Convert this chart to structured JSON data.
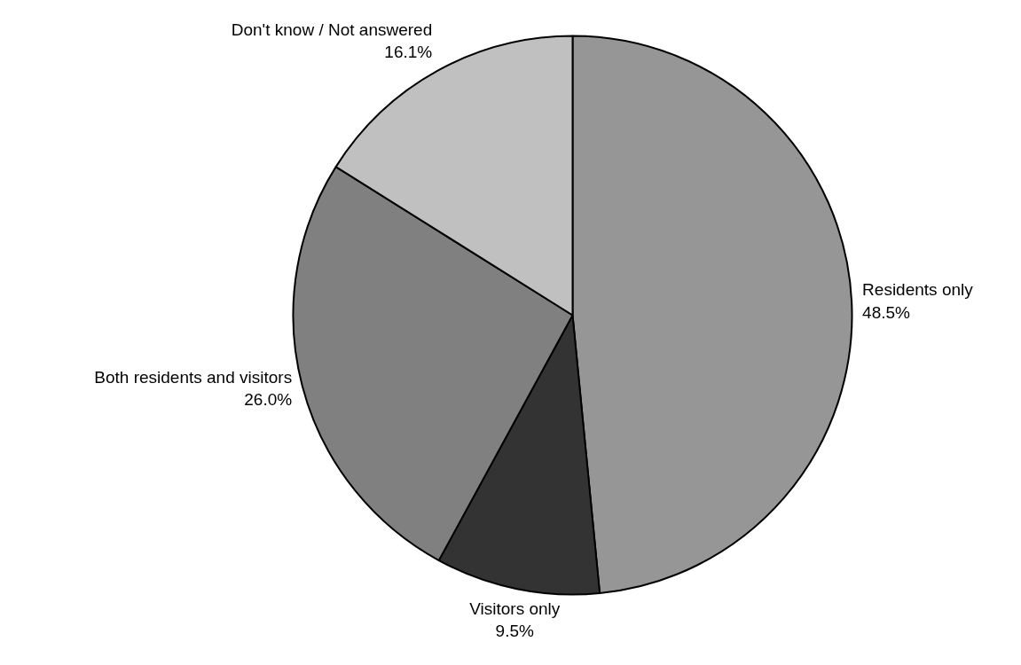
{
  "chart_data": {
    "type": "pie",
    "categories": [
      "Residents only",
      "Visitors only",
      "Both residents and visitors",
      "Don't know / Not answered"
    ],
    "values": [
      48.5,
      9.5,
      26.0,
      16.1
    ],
    "colors": [
      "#969696",
      "#333333",
      "#808080",
      "#c0c0c0"
    ],
    "value_labels": [
      "48.5%",
      "9.5%",
      "26.0%",
      "16.1%"
    ]
  }
}
